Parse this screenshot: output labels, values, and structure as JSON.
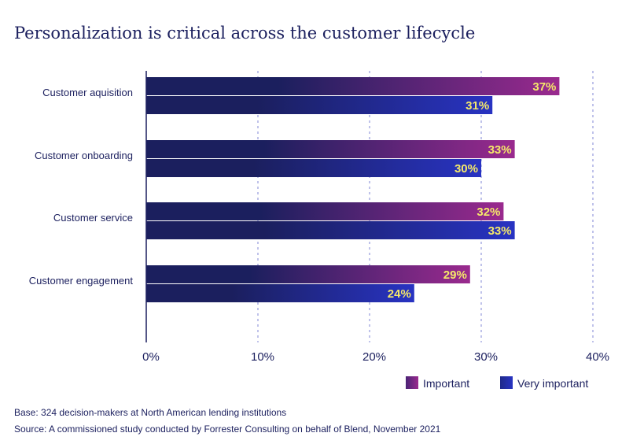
{
  "chart_data": {
    "type": "bar",
    "orientation": "horizontal",
    "title": "Personalization is critical across the customer lifecycle",
    "categories": [
      "Customer aquisition",
      "Customer onboarding",
      "Customer service",
      "Customer engagement"
    ],
    "series": [
      {
        "name": "Important",
        "values": [
          37,
          33,
          32,
          29
        ],
        "value_labels": [
          "37%",
          "33%",
          "32%",
          "29%"
        ]
      },
      {
        "name": "Very important",
        "values": [
          31,
          30,
          33,
          24
        ],
        "value_labels": [
          "31%",
          "30%",
          "33%",
          "24%"
        ]
      }
    ],
    "xlim": [
      0,
      40
    ],
    "xticks": [
      0,
      10,
      20,
      30,
      40
    ],
    "xtick_labels": [
      "0%",
      "10%",
      "20%",
      "30%",
      "40%"
    ],
    "grid": "vertical dashed",
    "legend": "bottom-right",
    "colors": {
      "dark": "#1b1f5e",
      "important": "#9a2a8e",
      "very_important": "#2833c2",
      "label": "#f5e96a",
      "grid": "#7f86d6"
    }
  },
  "notes": {
    "base": "Base: 324 decision-makers at North American lending institutions",
    "source": "Source: A commissioned study conducted by Forrester Consulting on behalf of Blend, November 2021"
  }
}
